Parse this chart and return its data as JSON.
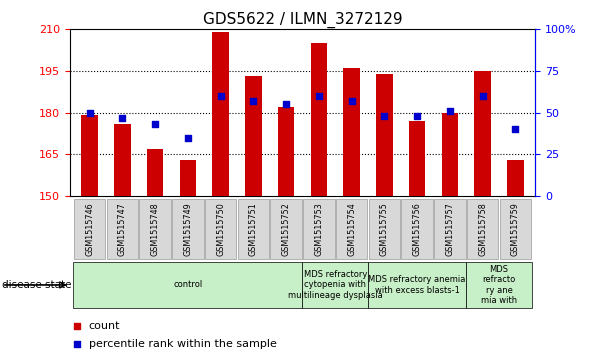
{
  "title": "GDS5622 / ILMN_3272129",
  "samples": [
    "GSM1515746",
    "GSM1515747",
    "GSM1515748",
    "GSM1515749",
    "GSM1515750",
    "GSM1515751",
    "GSM1515752",
    "GSM1515753",
    "GSM1515754",
    "GSM1515755",
    "GSM1515756",
    "GSM1515757",
    "GSM1515758",
    "GSM1515759"
  ],
  "counts": [
    179,
    176,
    167,
    163,
    209,
    193,
    182,
    205,
    196,
    194,
    177,
    180,
    195,
    163
  ],
  "percentile_ranks": [
    50,
    47,
    43,
    35,
    60,
    57,
    55,
    60,
    57,
    48,
    48,
    51,
    60,
    40
  ],
  "y_min": 150,
  "y_max": 210,
  "y_ticks": [
    150,
    165,
    180,
    195,
    210
  ],
  "y2_ticks": [
    0,
    25,
    50,
    75,
    100
  ],
  "bar_color": "#cc0000",
  "square_color": "#0000cc",
  "disease_states": [
    {
      "label": "control",
      "start": 0,
      "end": 7
    },
    {
      "label": "MDS refractory\ncytopenia with\nmultilineage dysplasia",
      "start": 7,
      "end": 9
    },
    {
      "label": "MDS refractory anemia\nwith excess blasts-1",
      "start": 9,
      "end": 12
    },
    {
      "label": "MDS\nrefracto\nry ane\nmia with",
      "start": 12,
      "end": 14
    }
  ],
  "disease_state_color": "#c8f0c8",
  "tick_box_color": "#d8d8d8",
  "tick_box_edge_color": "#999999",
  "bg_color": "#ffffff",
  "title_fontsize": 11,
  "bar_width": 0.5,
  "left_label": "disease state"
}
